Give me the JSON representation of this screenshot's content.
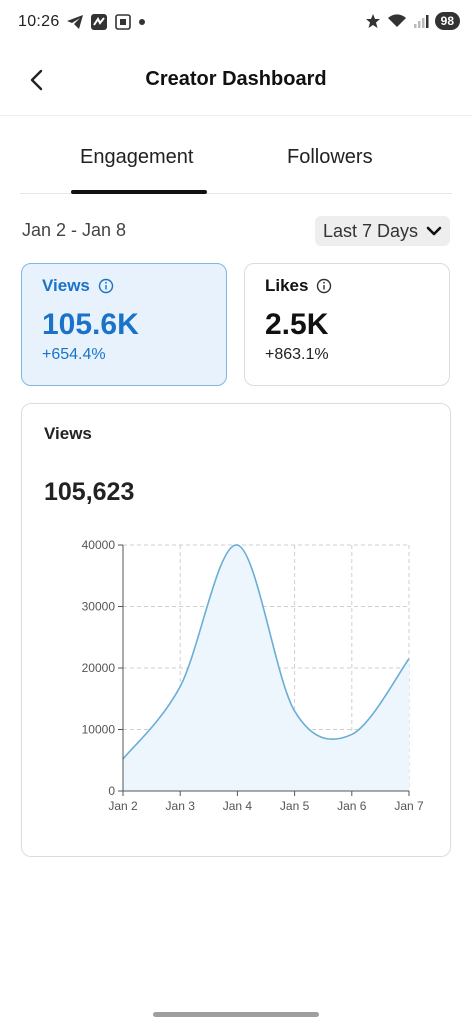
{
  "status_bar": {
    "time": "10:26",
    "battery": "98"
  },
  "header": {
    "title": "Creator Dashboard"
  },
  "tabs": [
    {
      "label": "Engagement",
      "active": true
    },
    {
      "label": "Followers",
      "active": false
    }
  ],
  "date_range": "Jan 2 - Jan 8",
  "range_select": {
    "value": "Last 7 Days"
  },
  "cards": {
    "views": {
      "label": "Views",
      "value": "105.6K",
      "change": "+654.4%"
    },
    "likes": {
      "label": "Likes",
      "value": "2.5K",
      "change": "+863.1%"
    }
  },
  "chart_card": {
    "label": "Views",
    "total": "105,623"
  },
  "colors": {
    "accent": "#1a73c8",
    "line": "#6aaed6",
    "fill": "#eef6fd"
  },
  "chart_data": {
    "type": "area",
    "categories": [
      "Jan 2",
      "Jan 3",
      "Jan 4",
      "Jan 5",
      "Jan 6",
      "Jan 7"
    ],
    "values": [
      5200,
      17000,
      40000,
      13000,
      9200,
      21500
    ],
    "ylim": [
      0,
      40000
    ],
    "yticks": [
      0,
      10000,
      20000,
      30000,
      40000
    ],
    "grid": true
  }
}
